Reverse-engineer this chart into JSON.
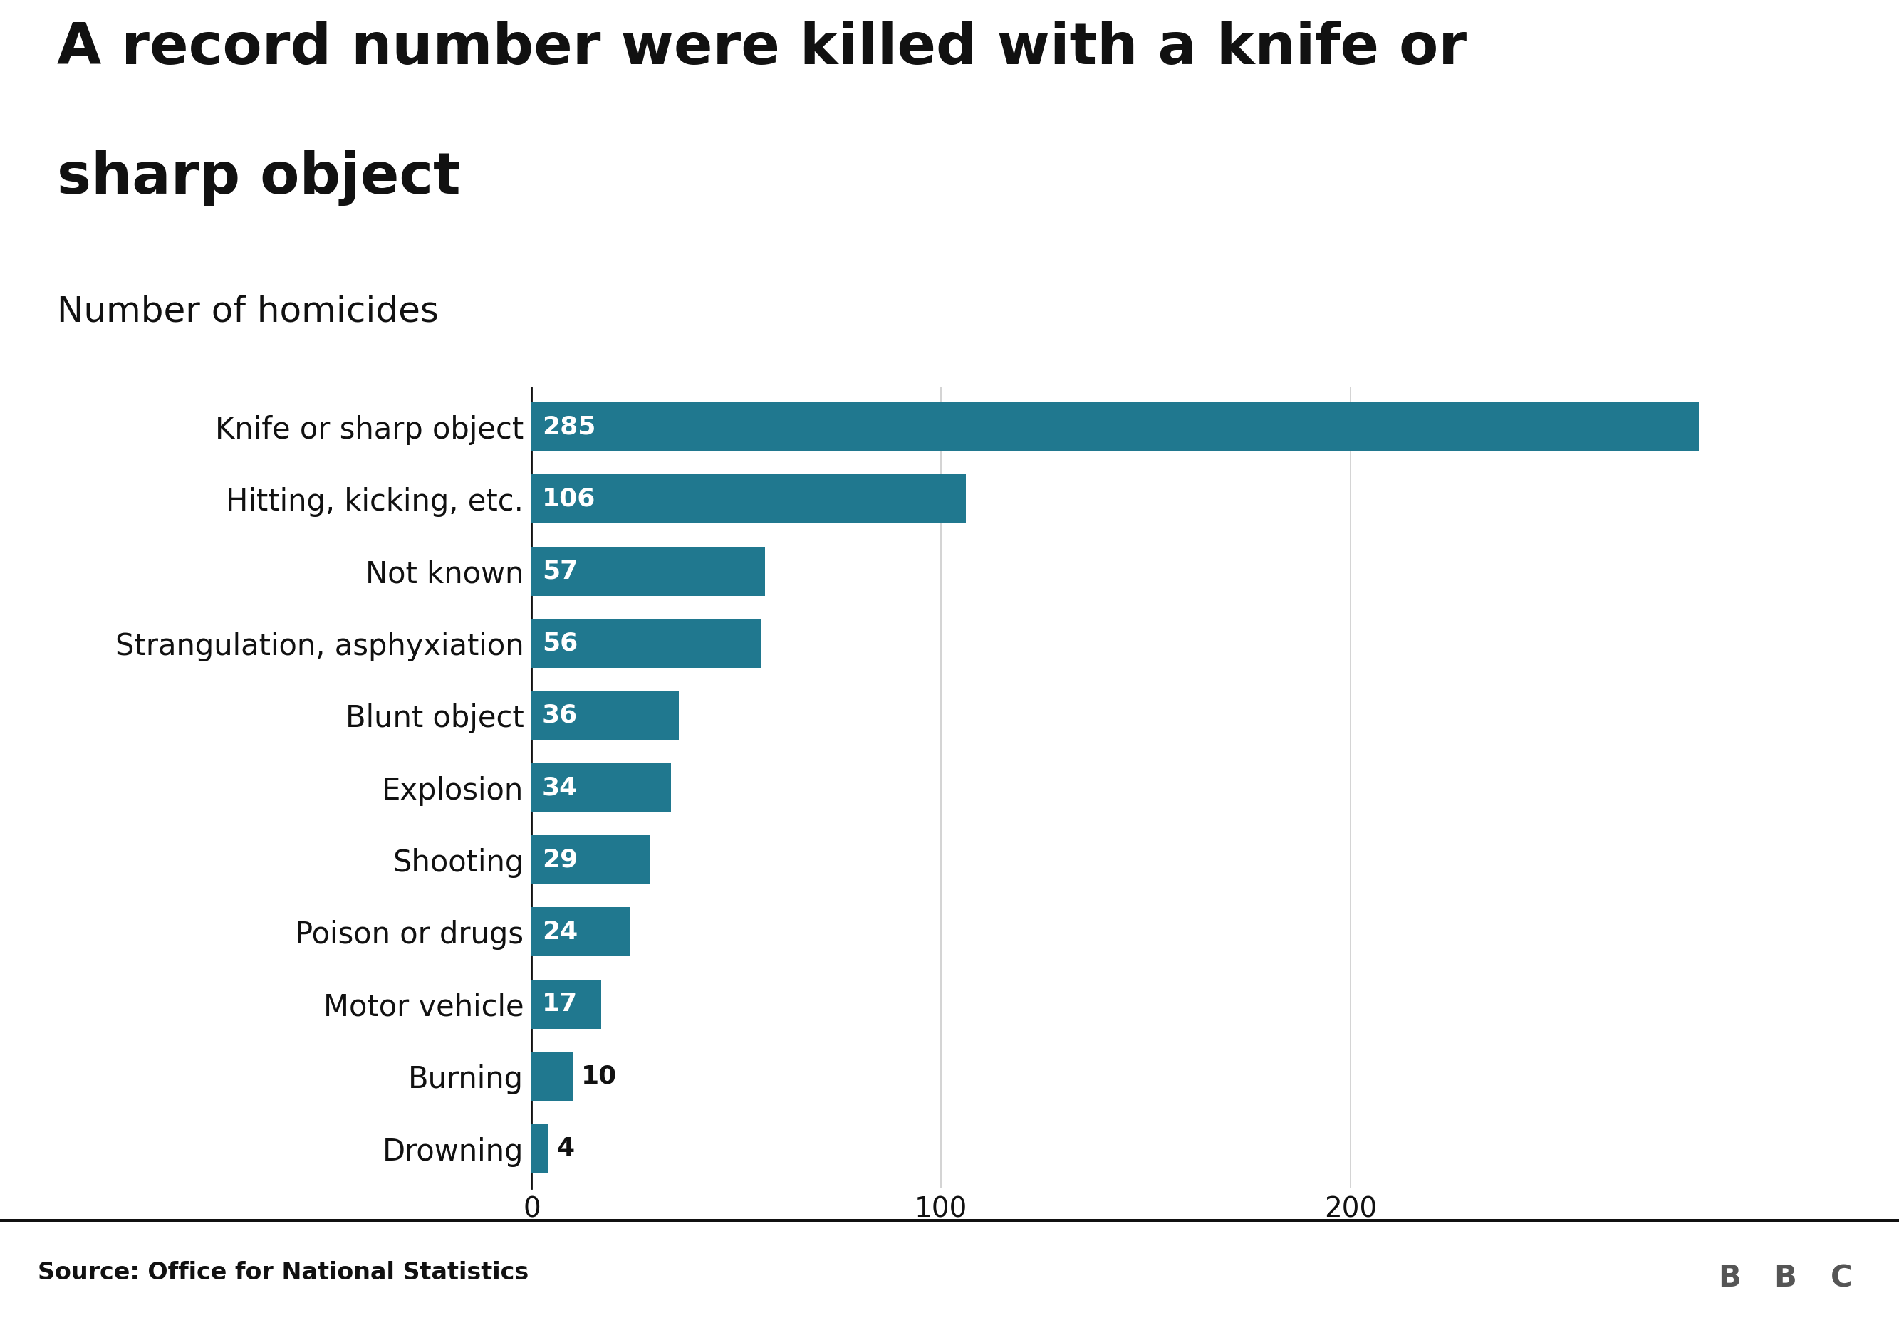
{
  "title_line1": "A record number were killed with a knife or",
  "title_line2": "sharp object",
  "subtitle": "Number of homicides",
  "source": "Source: Office for National Statistics",
  "bar_color": "#20788f",
  "background_color": "#ffffff",
  "categories": [
    "Knife or sharp object",
    "Hitting, kicking, etc.",
    "Not known",
    "Strangulation, asphyxiation",
    "Blunt object",
    "Explosion",
    "Shooting",
    "Poison or drugs",
    "Motor vehicle",
    "Burning",
    "Drowning"
  ],
  "values": [
    285,
    106,
    57,
    56,
    36,
    34,
    29,
    24,
    17,
    10,
    4
  ],
  "xlim_max": 320,
  "xticks": [
    0,
    100,
    200
  ],
  "title_fontsize": 58,
  "subtitle_fontsize": 36,
  "label_fontsize": 30,
  "value_fontsize": 26,
  "tick_fontsize": 28,
  "source_fontsize": 24,
  "bar_height": 0.68,
  "grid_color": "#cccccc",
  "text_color": "#111111",
  "value_inside_color": "#ffffff",
  "value_outside_color": "#111111",
  "inside_threshold": 12,
  "bbc_bg": "#555555"
}
